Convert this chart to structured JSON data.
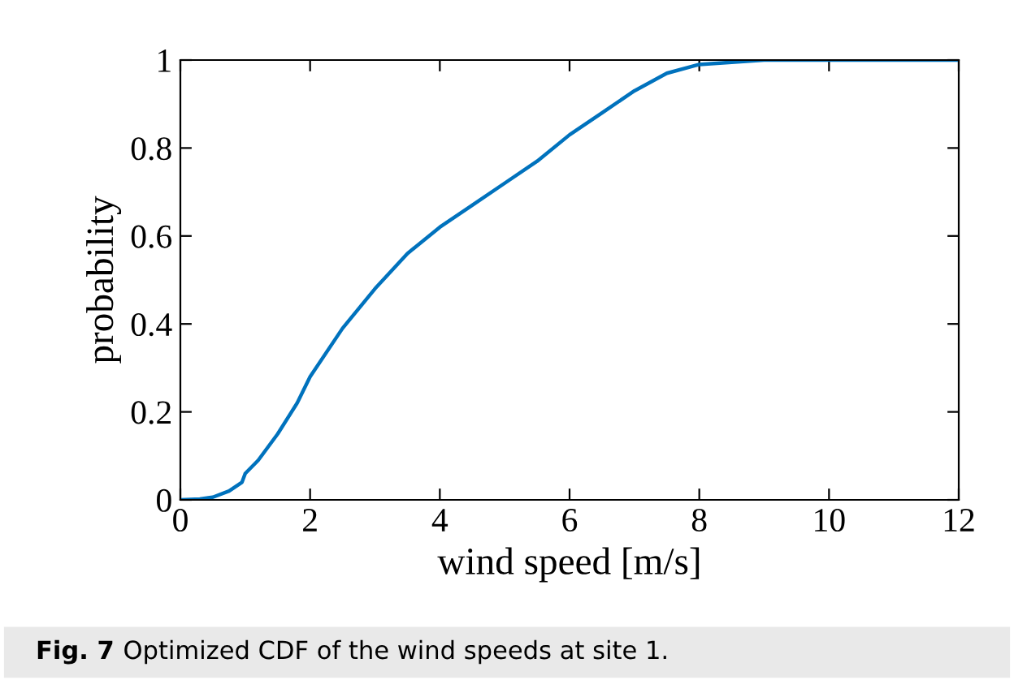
{
  "chart_data": {
    "type": "line",
    "xlabel": "wind speed [m/s]",
    "ylabel": "probability",
    "x": [
      0,
      0.3,
      0.5,
      0.75,
      0.95,
      1.0,
      1.2,
      1.5,
      1.8,
      2.0,
      2.5,
      3,
      3.5,
      4,
      4.5,
      5,
      5.5,
      6,
      6.5,
      7,
      7.5,
      8,
      9,
      10,
      12
    ],
    "series": [
      {
        "color": "#0072bd",
        "values": [
          0,
          0.002,
          0.006,
          0.02,
          0.04,
          0.06,
          0.09,
          0.15,
          0.22,
          0.28,
          0.39,
          0.48,
          0.56,
          0.62,
          0.67,
          0.72,
          0.77,
          0.83,
          0.88,
          0.93,
          0.97,
          0.99,
          1.0,
          1.0,
          1.0
        ]
      }
    ],
    "xlim": [
      0,
      12
    ],
    "xticks": [
      0,
      2,
      4,
      6,
      8,
      10,
      12
    ],
    "ylim": [
      0,
      1
    ],
    "yticks": [
      0,
      0.2,
      0.4,
      0.6,
      0.8,
      1
    ],
    "grid": false,
    "legend": false,
    "marker": "none",
    "line_style": "solid",
    "annotations": [
      "Fig. 7",
      "Optimized CDF of the wind speeds at site 1."
    ]
  }
}
